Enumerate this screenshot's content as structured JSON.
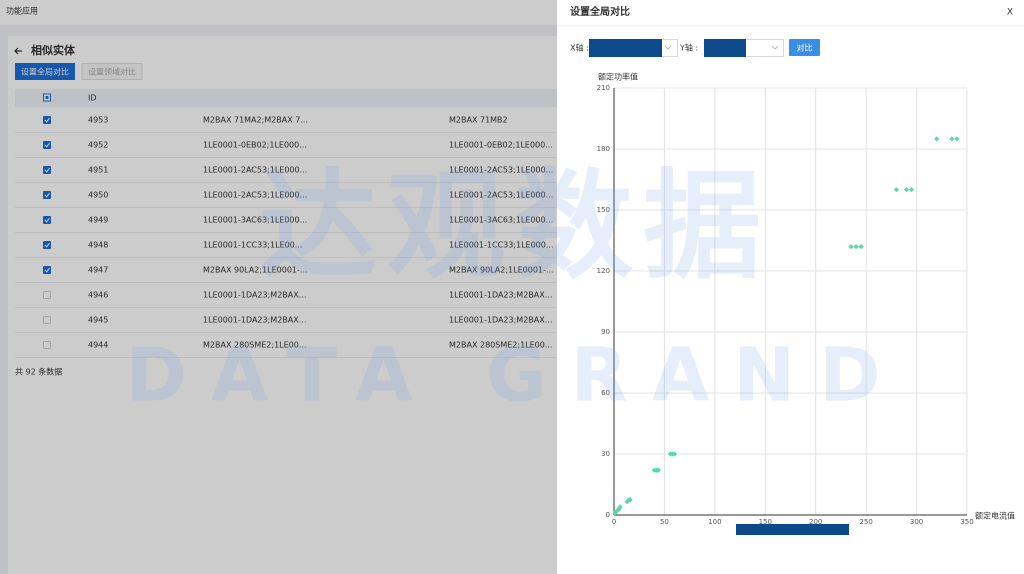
{
  "header": {
    "title": "功能应用"
  },
  "page": {
    "title": "相似实体",
    "buttons": [
      "设置全局对比",
      "设置领域对比"
    ]
  },
  "table": {
    "columns": [
      "ID"
    ],
    "rows": [
      {
        "checked": true,
        "cells": [
          4953,
          "M2BAX 71MA2;M2BAX 7...",
          "M2BAX 71MB2"
        ]
      },
      {
        "checked": true,
        "cells": [
          4952,
          "1LE0001-0EB02;1LE000...",
          "1LE0001-0EB02;1LE000..."
        ]
      },
      {
        "checked": true,
        "cells": [
          4951,
          "1LE0001-2AC53;1LE000...",
          "1LE0001-2AC53;1LE000..."
        ]
      },
      {
        "checked": true,
        "cells": [
          4950,
          "1LE0001-2AC53;1LE000...",
          "1LE0001-2AC53;1LE000..."
        ]
      },
      {
        "checked": true,
        "cells": [
          4949,
          "1LE0001-3AC63;1LE000...",
          "1LE0001-3AC63;1LE000..."
        ]
      },
      {
        "checked": true,
        "cells": [
          4948,
          "1LE0001-1CC33;1LE00...",
          "1LE0001-1CC33;1LE000..."
        ]
      },
      {
        "checked": true,
        "cells": [
          4947,
          "M2BAX 90LA2;1LE0001-...",
          "M2BAX 90LA2;1LE0001-..."
        ]
      },
      {
        "checked": false,
        "cells": [
          4946,
          "1LE0001-1DA23;M2BAX...",
          "1LE0001-1DA23;M2BAX..."
        ]
      },
      {
        "checked": false,
        "cells": [
          4945,
          "1LE0001-1DA23;M2BAX...",
          "1LE0001-1DA23;M2BAX..."
        ]
      },
      {
        "checked": false,
        "cells": [
          4944,
          "M2BAX 280SME2;1LE00...",
          "M2BAX 280SME2;1LE00..."
        ]
      }
    ]
  },
  "footer": "共 92 条数据",
  "watermark": [
    "达观数据",
    "DATA GRAND"
  ],
  "drawer": {
    "title": "设置全局对比",
    "close": "X",
    "x_select_label": "X轴 :",
    "y_select_label": "Y轴 :",
    "button": "对比",
    "chart_data": {
      "type": "scatter",
      "x_label": "额定电流值",
      "y_label": "额定功率值",
      "color": "#5ad8a6",
      "grid": true,
      "x": [
        1,
        3,
        5,
        6,
        13,
        15,
        16,
        40,
        42,
        44,
        56,
        58,
        60,
        235,
        240,
        245,
        280,
        290,
        295,
        320,
        335,
        340
      ],
      "y": [
        1,
        2,
        3,
        4,
        6.5,
        7.5,
        7.5,
        22,
        22,
        22,
        30,
        30,
        30,
        132,
        132,
        132,
        160,
        160,
        160,
        185,
        185,
        185
      ],
      "xlim": [
        0,
        350
      ],
      "xticks": [
        0,
        50,
        100,
        150,
        200,
        250,
        300,
        350
      ],
      "ylim": [
        0,
        210
      ],
      "yticks": [
        0,
        30,
        60,
        90,
        120,
        150,
        180,
        210
      ]
    }
  }
}
